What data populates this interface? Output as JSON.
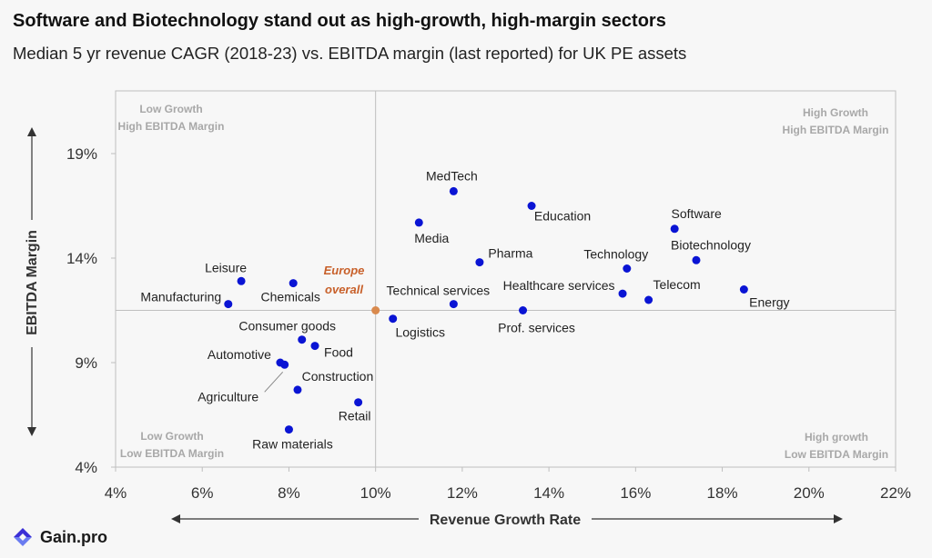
{
  "header": {
    "title": "Software and Biotechnology stand out as high-growth, high-margin sectors",
    "subtitle": "Median 5 yr revenue CAGR (2018-23) vs. EBITDA margin (last reported) for UK PE assets"
  },
  "brand": {
    "name": "Gain.pro"
  },
  "colors": {
    "point": "#0a14d4",
    "reference": "#d98a4e",
    "reference_label": "#c8602a",
    "quadrant_label": "#a8a8a8",
    "axis": "#bfbfbf"
  },
  "chart_data": {
    "type": "scatter",
    "title": "Software and Biotechnology stand out as high-growth, high-margin sectors",
    "subtitle": "Median 5 yr revenue CAGR (2018-23) vs. EBITDA margin (last reported) for UK PE assets",
    "xlabel": "Revenue Growth Rate",
    "ylabel": "EBITDA Margin",
    "xlim": [
      4,
      22
    ],
    "ylim": [
      4,
      22
    ],
    "x_ticks": [
      "4%",
      "6%",
      "8%",
      "10%",
      "12%",
      "14%",
      "16%",
      "18%",
      "20%",
      "22%"
    ],
    "x_tick_values": [
      4,
      6,
      8,
      10,
      12,
      14,
      16,
      18,
      20,
      22
    ],
    "y_ticks": [
      "4%",
      "9%",
      "14%",
      "19%"
    ],
    "y_tick_values": [
      4,
      9,
      14,
      19
    ],
    "grid": false,
    "reference": {
      "name": "Europe overall",
      "x": 10,
      "y": 11.5
    },
    "quadrant_labels": [
      {
        "position": "top-left",
        "lines": [
          "Low Growth",
          "High EBITDA Margin"
        ]
      },
      {
        "position": "top-right",
        "lines": [
          "High Growth",
          "High EBITDA Margin"
        ]
      },
      {
        "position": "bottom-left",
        "lines": [
          "Low Growth",
          "Low EBITDA Margin"
        ]
      },
      {
        "position": "bottom-right",
        "lines": [
          "High growth",
          "Low EBITDA Margin"
        ]
      }
    ],
    "points": [
      {
        "label": "MedTech",
        "x": 11.8,
        "y": 17.2
      },
      {
        "label": "Education",
        "x": 13.6,
        "y": 16.5
      },
      {
        "label": "Media",
        "x": 11.0,
        "y": 15.7
      },
      {
        "label": "Software",
        "x": 16.9,
        "y": 15.4
      },
      {
        "label": "Pharma",
        "x": 12.4,
        "y": 13.8
      },
      {
        "label": "Technology",
        "x": 15.8,
        "y": 13.5
      },
      {
        "label": "Biotechnology",
        "x": 17.4,
        "y": 13.9
      },
      {
        "label": "Leisure",
        "x": 6.9,
        "y": 12.9
      },
      {
        "label": "Chemicals",
        "x": 8.1,
        "y": 12.8
      },
      {
        "label": "Manufacturing",
        "x": 6.6,
        "y": 11.8
      },
      {
        "label": "Technical services",
        "x": 11.8,
        "y": 11.8
      },
      {
        "label": "Healthcare services",
        "x": 15.7,
        "y": 12.3
      },
      {
        "label": "Telecom",
        "x": 16.3,
        "y": 12.0
      },
      {
        "label": "Energy",
        "x": 18.5,
        "y": 12.5
      },
      {
        "label": "Logistics",
        "x": 10.4,
        "y": 11.1
      },
      {
        "label": "Prof. services",
        "x": 13.4,
        "y": 11.5
      },
      {
        "label": "Consumer goods",
        "x": 8.3,
        "y": 10.1
      },
      {
        "label": "Food",
        "x": 8.6,
        "y": 9.8
      },
      {
        "label": "Automotive",
        "x": 7.8,
        "y": 9.0
      },
      {
        "label": "Agriculture",
        "x": 7.9,
        "y": 8.9
      },
      {
        "label": "Construction",
        "x": 8.2,
        "y": 7.7
      },
      {
        "label": "Retail",
        "x": 9.6,
        "y": 7.1
      },
      {
        "label": "Raw materials",
        "x": 8.0,
        "y": 5.8
      }
    ]
  }
}
